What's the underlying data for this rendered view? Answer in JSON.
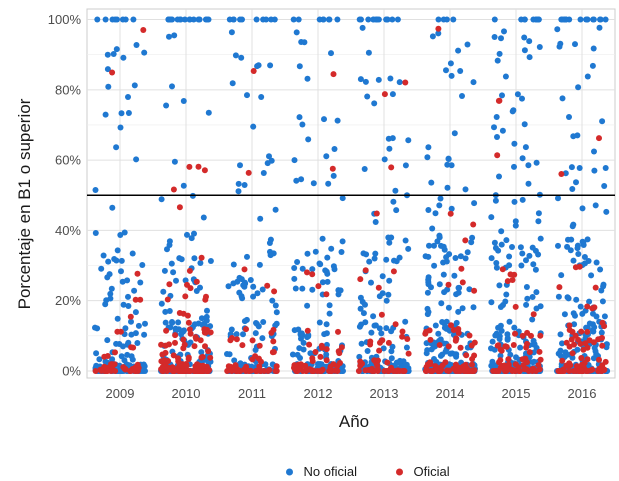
{
  "chart_data": {
    "type": "scatter",
    "title": "",
    "xlabel": "Año",
    "ylabel": "Porcentaje en B1 o superior",
    "categories": [
      "2009",
      "2010",
      "2011",
      "2012",
      "2013",
      "2014",
      "2015",
      "2016"
    ],
    "ylim": [
      -2,
      103
    ],
    "y_ticks": [
      0,
      20,
      40,
      60,
      80,
      100
    ],
    "y_tick_labels": [
      "0%",
      "20%",
      "40%",
      "60%",
      "80%",
      "100%"
    ],
    "reference_line": 50,
    "grid": true,
    "legend_position": "bottom",
    "jitter": true,
    "series": [
      {
        "name": "No oficial",
        "color": "#1f78d1",
        "points_per_category": [
          160,
          190,
          150,
          180,
          190,
          240,
          230,
          260
        ],
        "notes": "dense near 0-30%, sparse up to 100%, cluster at 100%"
      },
      {
        "name": "Oficial",
        "color": "#d42a2a",
        "points_per_category": [
          45,
          120,
          55,
          55,
          50,
          75,
          65,
          80
        ],
        "notes": "mostly 0-25%, few higher"
      }
    ]
  }
}
